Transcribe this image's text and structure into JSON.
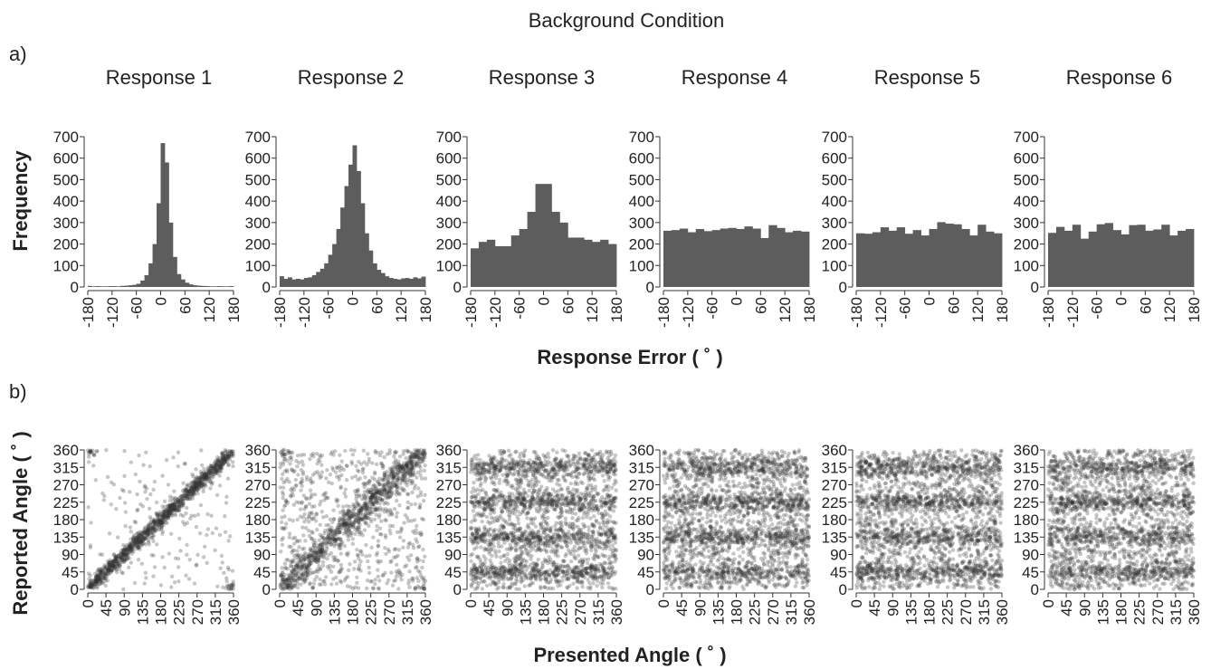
{
  "figure": {
    "title": "Background Condition",
    "panel_a_label": "a)",
    "panel_b_label": "b)",
    "hist_ylabel": "Frequency",
    "hist_xlabel": "Response Error ( ˚ )",
    "scatter_ylabel": "Reported Angle ( ˚ )",
    "scatter_xlabel": "Presented Angle ( ˚ )"
  },
  "chart_data": [
    {
      "type": "bar",
      "panel": "a",
      "title": "Response 1",
      "xlim": [
        -180,
        180
      ],
      "ylim": [
        0,
        700
      ],
      "xticks": [
        -180,
        -120,
        -60,
        0,
        60,
        120,
        180
      ],
      "yticks": [
        0,
        100,
        200,
        300,
        400,
        500,
        600,
        700
      ],
      "bin_width": 10,
      "values": [
        5,
        3,
        4,
        3,
        3,
        4,
        4,
        3,
        5,
        6,
        8,
        10,
        15,
        30,
        55,
        110,
        200,
        390,
        670,
        580,
        300,
        140,
        60,
        35,
        20,
        12,
        8,
        6,
        5,
        4,
        3,
        3,
        4,
        3,
        3,
        4
      ]
    },
    {
      "type": "bar",
      "panel": "a",
      "title": "Response 2",
      "xlim": [
        -180,
        180
      ],
      "ylim": [
        0,
        700
      ],
      "xticks": [
        -180,
        -120,
        -60,
        0,
        60,
        120,
        180
      ],
      "yticks": [
        0,
        100,
        200,
        300,
        400,
        500,
        600,
        700
      ],
      "bin_width": 10,
      "values": [
        50,
        38,
        45,
        35,
        38,
        35,
        42,
        45,
        55,
        70,
        85,
        110,
        150,
        200,
        270,
        370,
        470,
        570,
        660,
        540,
        390,
        250,
        170,
        110,
        80,
        65,
        50,
        42,
        38,
        35,
        40,
        42,
        38,
        45,
        40,
        48
      ]
    },
    {
      "type": "bar",
      "panel": "a",
      "title": "Response 3",
      "xlim": [
        -180,
        180
      ],
      "ylim": [
        0,
        700
      ],
      "xticks": [
        -180,
        -120,
        -60,
        0,
        60,
        120,
        180
      ],
      "yticks": [
        0,
        100,
        200,
        300,
        400,
        500,
        600,
        700
      ],
      "bin_width": 20,
      "values": [
        180,
        210,
        220,
        190,
        190,
        240,
        270,
        350,
        480,
        480,
        350,
        300,
        230,
        230,
        220,
        210,
        220,
        200
      ]
    },
    {
      "type": "bar",
      "panel": "a",
      "title": "Response 4",
      "xlim": [
        -180,
        180
      ],
      "ylim": [
        0,
        700
      ],
      "xticks": [
        -180,
        -120,
        -60,
        0,
        60,
        120,
        180
      ],
      "yticks": [
        0,
        100,
        200,
        300,
        400,
        500,
        600,
        700
      ],
      "bin_width": 20,
      "values": [
        262,
        265,
        272,
        255,
        270,
        260,
        265,
        272,
        275,
        270,
        282,
        272,
        228,
        288,
        275,
        255,
        262,
        258
      ]
    },
    {
      "type": "bar",
      "panel": "a",
      "title": "Response 5",
      "xlim": [
        -180,
        180
      ],
      "ylim": [
        0,
        700
      ],
      "xticks": [
        -180,
        -120,
        -60,
        0,
        60,
        120,
        180
      ],
      "yticks": [
        0,
        100,
        200,
        300,
        400,
        500,
        600,
        700
      ],
      "bin_width": 20,
      "values": [
        250,
        248,
        255,
        278,
        262,
        278,
        248,
        265,
        240,
        270,
        302,
        295,
        292,
        270,
        240,
        290,
        258,
        250
      ]
    },
    {
      "type": "bar",
      "panel": "a",
      "title": "Response 6",
      "xlim": [
        -180,
        180
      ],
      "ylim": [
        0,
        700
      ],
      "xticks": [
        -180,
        -120,
        -60,
        0,
        60,
        120,
        180
      ],
      "yticks": [
        0,
        100,
        200,
        300,
        400,
        500,
        600,
        700
      ],
      "bin_width": 20,
      "values": [
        252,
        280,
        262,
        290,
        225,
        258,
        292,
        298,
        265,
        245,
        288,
        290,
        262,
        268,
        290,
        240,
        262,
        270
      ]
    },
    {
      "type": "scatter",
      "panel": "b",
      "xlim": [
        0,
        360
      ],
      "ylim": [
        0,
        360
      ],
      "xticks": [
        0,
        45,
        90,
        135,
        180,
        225,
        270,
        315,
        360
      ],
      "yticks": [
        0,
        45,
        90,
        135,
        180,
        225,
        270,
        315,
        360
      ],
      "pattern": "diagonal",
      "diagonal_spread": 12,
      "diagonal_share": 0.85,
      "n_points": 1300
    },
    {
      "type": "scatter",
      "panel": "b",
      "xlim": [
        0,
        360
      ],
      "ylim": [
        0,
        360
      ],
      "xticks": [
        0,
        45,
        90,
        135,
        180,
        225,
        270,
        315,
        360
      ],
      "yticks": [
        0,
        45,
        90,
        135,
        180,
        225,
        270,
        315,
        360
      ],
      "pattern": "diagonal",
      "diagonal_spread": 22,
      "diagonal_share": 0.55,
      "n_points": 1600
    },
    {
      "type": "scatter",
      "panel": "b",
      "xlim": [
        0,
        360
      ],
      "ylim": [
        0,
        360
      ],
      "xticks": [
        0,
        45,
        90,
        135,
        180,
        225,
        270,
        315,
        360
      ],
      "yticks": [
        0,
        45,
        90,
        135,
        180,
        225,
        270,
        315,
        360
      ],
      "pattern": "bands",
      "band_centers": [
        45,
        135,
        225,
        315
      ],
      "band_share": 0.55,
      "n_points": 2600
    },
    {
      "type": "scatter",
      "panel": "b",
      "xlim": [
        0,
        360
      ],
      "ylim": [
        0,
        360
      ],
      "xticks": [
        0,
        45,
        90,
        135,
        180,
        225,
        270,
        315,
        360
      ],
      "yticks": [
        0,
        45,
        90,
        135,
        180,
        225,
        270,
        315,
        360
      ],
      "pattern": "bands",
      "band_centers": [
        45,
        135,
        225,
        315
      ],
      "band_share": 0.5,
      "n_points": 2600
    },
    {
      "type": "scatter",
      "panel": "b",
      "xlim": [
        0,
        360
      ],
      "ylim": [
        0,
        360
      ],
      "xticks": [
        0,
        45,
        90,
        135,
        180,
        225,
        270,
        315,
        360
      ],
      "yticks": [
        0,
        45,
        90,
        135,
        180,
        225,
        270,
        315,
        360
      ],
      "pattern": "bands",
      "band_centers": [
        45,
        135,
        225,
        315
      ],
      "band_share": 0.5,
      "n_points": 2600
    },
    {
      "type": "scatter",
      "panel": "b",
      "xlim": [
        0,
        360
      ],
      "ylim": [
        0,
        360
      ],
      "xticks": [
        0,
        45,
        90,
        135,
        180,
        225,
        270,
        315,
        360
      ],
      "yticks": [
        0,
        45,
        90,
        135,
        180,
        225,
        270,
        315,
        360
      ],
      "pattern": "bands",
      "band_centers": [
        45,
        135,
        225,
        315
      ],
      "band_share": 0.5,
      "n_points": 2600
    }
  ]
}
